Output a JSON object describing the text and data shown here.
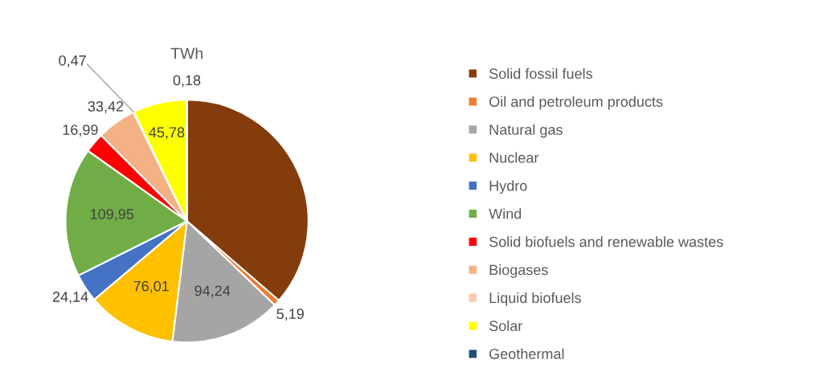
{
  "chart_data": {
    "type": "pie",
    "title": "TWh",
    "categories": [
      "Solid fossil fuels",
      "Oil and petroleum products",
      "Natural gas",
      "Nuclear",
      "Hydro",
      "Wind",
      "Solid biofuels and renewable wastes",
      "Biogases",
      "Liquid biofuels",
      "Solar",
      "Geothermal"
    ],
    "values": [
      232,
      5.19,
      94.24,
      76.01,
      24.14,
      109.95,
      16.99,
      33.42,
      0.47,
      45.78,
      0.18
    ],
    "value_labels": [
      null,
      "5,19",
      "94,24",
      "76,01",
      "24,14",
      "109,95",
      "16,99",
      "33,42",
      "0,47",
      "45,78",
      "0,18"
    ],
    "colors": [
      "#843c0c",
      "#ed7d31",
      "#a5a5a5",
      "#ffc000",
      "#4472c4",
      "#70ad47",
      "#ff0000",
      "#f4b183",
      "#f8cbad",
      "#ffff00",
      "#1f4e79"
    ],
    "legend": "right"
  }
}
